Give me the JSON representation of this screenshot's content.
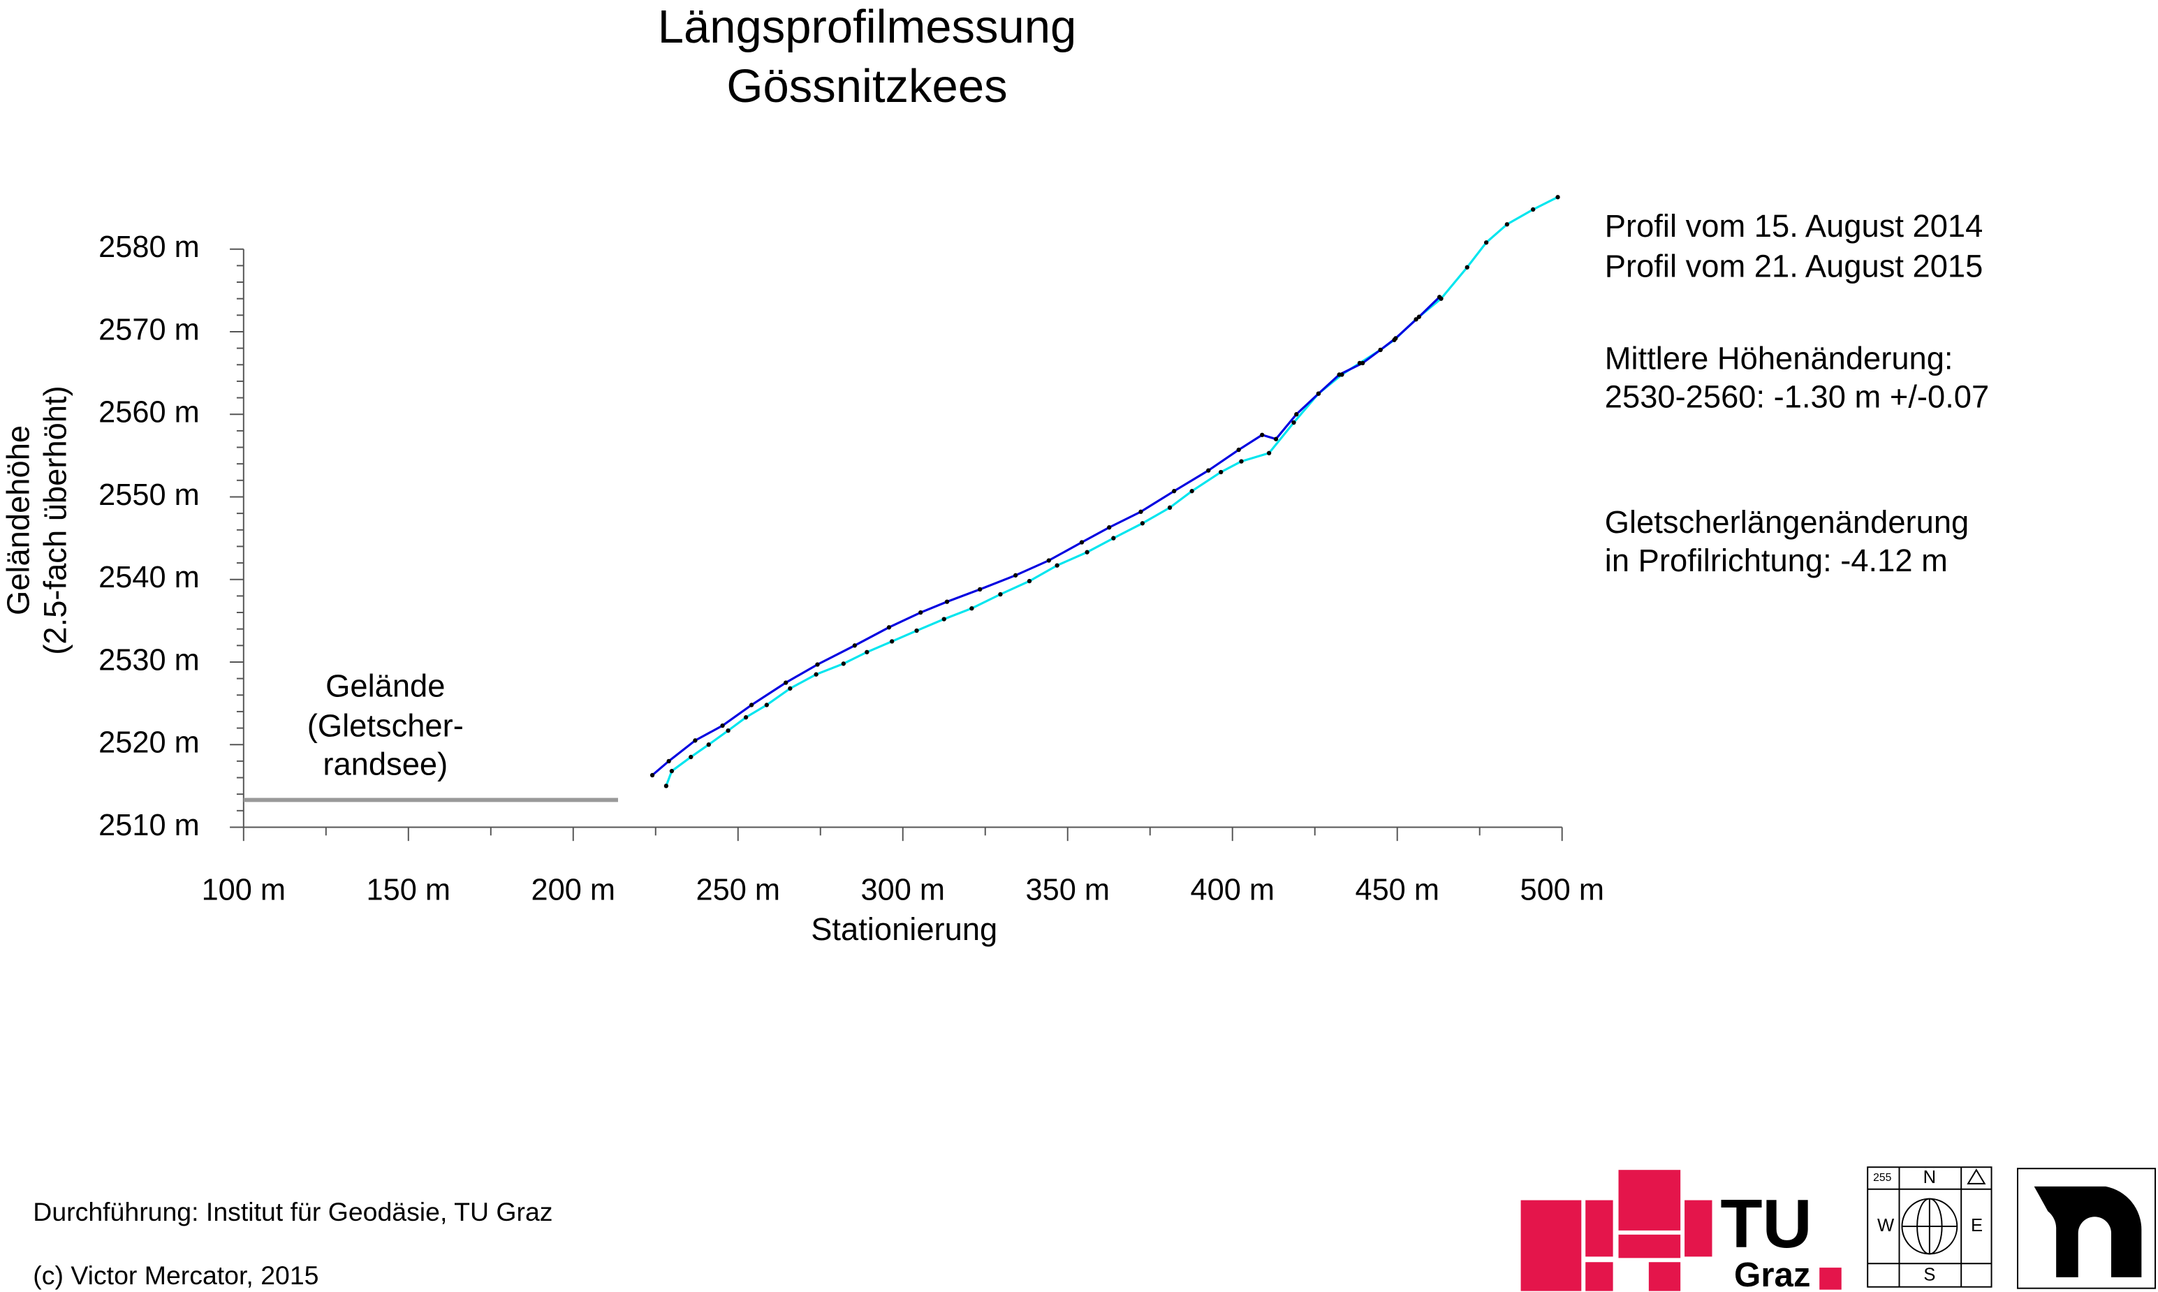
{
  "chart_data": {
    "type": "line",
    "title": [
      "Längsprofilmessung",
      "Gössnitzkees"
    ],
    "xlabel": "Stationierung",
    "ylabel": [
      "Geländehöhe",
      "(2.5-fach überhöht)"
    ],
    "xlim": [
      100,
      500
    ],
    "ylim": [
      2510,
      2580
    ],
    "xticks": [
      {
        "value": 100,
        "label": "100 m"
      },
      {
        "value": 150,
        "label": "150 m"
      },
      {
        "value": 200,
        "label": "200 m"
      },
      {
        "value": 250,
        "label": "250 m"
      },
      {
        "value": 300,
        "label": "300 m"
      },
      {
        "value": 350,
        "label": "350 m"
      },
      {
        "value": 400,
        "label": "400 m"
      },
      {
        "value": 450,
        "label": "450 m"
      },
      {
        "value": 500,
        "label": "500 m"
      }
    ],
    "xminorticks": [
      125,
      175,
      225,
      275,
      325,
      375,
      425,
      475
    ],
    "yticks": [
      {
        "value": 2510,
        "label": "2510 m"
      },
      {
        "value": 2520,
        "label": "2520 m"
      },
      {
        "value": 2530,
        "label": "2530 m"
      },
      {
        "value": 2540,
        "label": "2540 m"
      },
      {
        "value": 2550,
        "label": "2550 m"
      },
      {
        "value": 2560,
        "label": "2560 m"
      },
      {
        "value": 2570,
        "label": "2570 m"
      },
      {
        "value": 2580,
        "label": "2580 m"
      }
    ],
    "yminorticks": [
      2512,
      2514,
      2516,
      2518,
      2522,
      2524,
      2526,
      2528,
      2532,
      2534,
      2536,
      2538,
      2542,
      2544,
      2546,
      2548,
      2552,
      2554,
      2556,
      2558,
      2562,
      2564,
      2566,
      2568,
      2572,
      2574,
      2576,
      2578
    ],
    "series": [
      {
        "name": "Profil vom 15. August 2014",
        "color": "#0000e0",
        "x": [
          224.0,
          229.0,
          237.0,
          245.3,
          254.1,
          264.5,
          274.1,
          285.4,
          295.8,
          305.4,
          313.4,
          323.4,
          334.2,
          344.3,
          354.3,
          362.6,
          372.2,
          382.3,
          392.7,
          401.9,
          409.0,
          413.2,
          419.4,
          426.1,
          432.4,
          439.5,
          444.9,
          449.5,
          456.6,
          462.8
        ],
        "values": [
          2516.3,
          2518.0,
          2520.5,
          2522.3,
          2524.8,
          2527.5,
          2529.7,
          2532.0,
          2534.2,
          2536.0,
          2537.3,
          2538.8,
          2540.5,
          2542.3,
          2544.5,
          2546.3,
          2548.2,
          2550.7,
          2553.2,
          2555.7,
          2557.5,
          2557.0,
          2560.0,
          2562.5,
          2564.8,
          2566.2,
          2567.8,
          2569.2,
          2571.8,
          2574.2
        ]
      },
      {
        "name": "Profil vom 21. August 2015",
        "color": "#00e5ee",
        "x": [
          228.2,
          229.9,
          235.7,
          241.1,
          247.0,
          252.4,
          258.7,
          265.8,
          273.7,
          282.0,
          289.1,
          296.7,
          304.2,
          312.5,
          320.9,
          329.6,
          338.4,
          346.8,
          355.9,
          363.9,
          372.7,
          381.0,
          387.7,
          396.5,
          402.7,
          411.1,
          418.6,
          426.1,
          433.2,
          438.6,
          444.9,
          449.1,
          455.7,
          463.3,
          471.2,
          477.0,
          483.3,
          491.2,
          498.7
        ],
        "values": [
          2515.0,
          2516.8,
          2518.5,
          2520.0,
          2521.7,
          2523.3,
          2524.8,
          2526.8,
          2528.5,
          2529.8,
          2531.2,
          2532.5,
          2533.8,
          2535.2,
          2536.5,
          2538.2,
          2539.8,
          2541.7,
          2543.3,
          2545.0,
          2546.8,
          2548.7,
          2550.7,
          2553.0,
          2554.3,
          2555.3,
          2559.0,
          2562.5,
          2564.8,
          2566.2,
          2567.8,
          2569.0,
          2571.5,
          2574.0,
          2577.8,
          2580.8,
          2583.0,
          2584.8,
          2586.3
        ]
      }
    ],
    "terrain": {
      "label": [
        "Gelände",
        "(Gletscher-",
        "randsee)"
      ],
      "color": "#999999",
      "x": [
        100,
        213.6
      ],
      "values": [
        2513.3,
        2513.3
      ]
    },
    "annotations": [
      "Mittlere Höhenänderung:",
      "2530-2560: -1.30 m  +/-0.07",
      "Gletscherlängenänderung",
      "in Profilrichtung: -4.12 m"
    ],
    "footer": [
      "Durchführung: Institut für Geodäsie, TU Graz",
      "(c) Victor Mercator, 2015"
    ],
    "logos": {
      "tu": [
        "TU",
        "Graz"
      ],
      "compass": [
        "255",
        "N",
        "W",
        "E",
        "S"
      ]
    }
  }
}
